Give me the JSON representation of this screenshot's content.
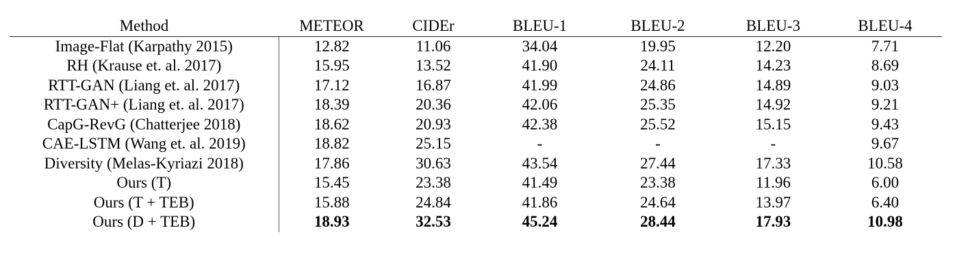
{
  "table": {
    "headers": [
      "Method",
      "METEOR",
      "CIDEr",
      "BLEU-1",
      "BLEU-2",
      "BLEU-3",
      "BLEU-4"
    ],
    "rows": [
      {
        "method": "Image-Flat (Karpathy 2015)",
        "values": [
          "12.82",
          "11.06",
          "34.04",
          "19.95",
          "12.20",
          "7.71"
        ]
      },
      {
        "method": "RH (Krause et. al. 2017)",
        "values": [
          "15.95",
          "13.52",
          "41.90",
          "24.11",
          "14.23",
          "8.69"
        ]
      },
      {
        "method": "RTT-GAN (Liang et. al. 2017)",
        "values": [
          "17.12",
          "16.87",
          "41.99",
          "24.86",
          "14.89",
          "9.03"
        ]
      },
      {
        "method": "RTT-GAN+ (Liang et. al. 2017)",
        "values": [
          "18.39",
          "20.36",
          "42.06",
          "25.35",
          "14.92",
          "9.21"
        ]
      },
      {
        "method": "CapG-RevG (Chatterjee 2018)",
        "values": [
          "18.62",
          "20.93",
          "42.38",
          "25.52",
          "15.15",
          "9.43"
        ]
      },
      {
        "method": "CAE-LSTM (Wang et. al. 2019)",
        "values": [
          "18.82",
          "25.15",
          "-",
          "-",
          "-",
          "9.67"
        ]
      },
      {
        "method": "Diversity (Melas-Kyriazi 2018)",
        "values": [
          "17.86",
          "30.63",
          "43.54",
          "27.44",
          "17.33",
          "10.58"
        ]
      },
      {
        "method": "Ours (T)",
        "values": [
          "15.45",
          "23.38",
          "41.49",
          "23.38",
          "11.96",
          "6.00"
        ]
      },
      {
        "method": "Ours (T + TEB)",
        "values": [
          "15.88",
          "24.84",
          "41.86",
          "24.64",
          "13.97",
          "6.40"
        ]
      },
      {
        "method": "Ours (D + TEB)",
        "values": [
          "18.93",
          "32.53",
          "45.24",
          "28.44",
          "17.93",
          "10.98"
        ],
        "bold": true
      }
    ]
  }
}
